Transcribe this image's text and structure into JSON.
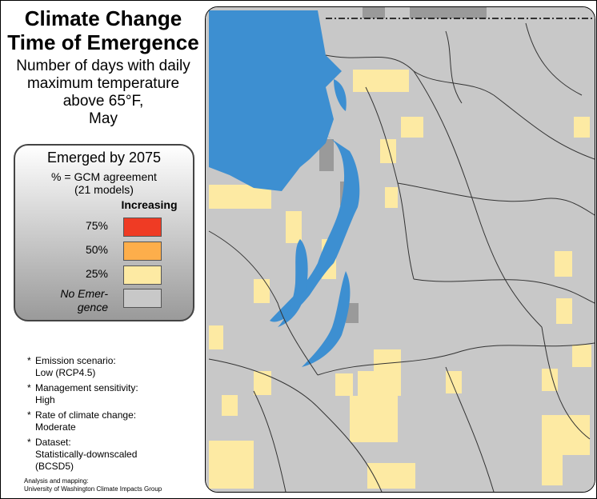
{
  "title": {
    "line1": "Climate Change",
    "line2": "Time of Emergence"
  },
  "subtitle": {
    "line1": "Number of days with daily",
    "line2": "maximum temperature",
    "line3": "above 65°F,",
    "line4": "May"
  },
  "legend": {
    "title": "Emerged by 2075",
    "agreement_line1": "% = GCM agreement",
    "agreement_line2": "(21 models)",
    "direction": "Increasing",
    "items": [
      {
        "label": "75%",
        "color": "#ef3b24"
      },
      {
        "label": "50%",
        "color": "#fdae4b"
      },
      {
        "label": "25%",
        "color": "#fdeaa3"
      },
      {
        "label_line1": "No Emer-",
        "label_line2": "gence",
        "color": "#c8c8c8"
      }
    ]
  },
  "notes": [
    {
      "label": "Emission scenario:",
      "value": "Low (RCP4.5)"
    },
    {
      "label": "Management sensitivity:",
      "value": "High"
    },
    {
      "label": "Rate of climate change:",
      "value": "Moderate"
    },
    {
      "label": "Dataset:",
      "value_line1": "Statistically-downscaled",
      "value_line2": "(BCSD5)"
    }
  ],
  "credit": {
    "line1": "Analysis and mapping:",
    "line2": "University of Washington Climate Impacts Group"
  },
  "map_colors": {
    "water": "#3d8fd1",
    "land_no_emergence": "#c8c8c8",
    "emerged_25": "#fdeaa3",
    "no_data": "#9a9a9a",
    "boundaries": "#333333"
  }
}
